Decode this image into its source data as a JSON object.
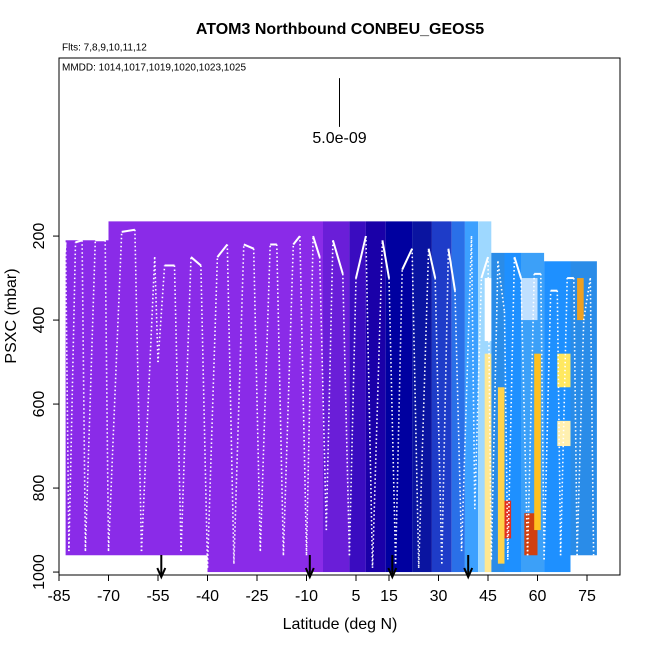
{
  "chart_data": {
    "type": "curtain",
    "title": "ATOM3 Northbound CONBEU_GEOS5",
    "subtitle": "Flts: 7,8,9,10,11,12",
    "annotation": "MMDD: 1014,1017,1019,1020,1023,1025",
    "scale_label": "5.0e-09",
    "scale_bar": {
      "x": 0,
      "y": [
        -176,
        -60
      ]
    },
    "x_label": "Latitude (deg N)",
    "y_label": "PSXC (mbar)",
    "xlim": [
      -85,
      85
    ],
    "ylim": [
      1007,
      -224
    ],
    "xticks": [
      -85,
      -70,
      -55,
      -40,
      -25,
      -10,
      5,
      15,
      30,
      45,
      60,
      75
    ],
    "yticks": [
      200,
      400,
      600,
      800,
      1000
    ],
    "cells": [
      {
        "x": [
          -83,
          -70
        ],
        "y": [
          210,
          960
        ],
        "color": "#8a2be8"
      },
      {
        "x": [
          -70,
          -40
        ],
        "y": [
          165,
          960
        ],
        "color": "#8a2be8"
      },
      {
        "x": [
          -40,
          -5
        ],
        "y": [
          165,
          1000
        ],
        "color": "#8a2be8"
      },
      {
        "x": [
          -5,
          3
        ],
        "y": [
          165,
          1000
        ],
        "color": "#6a1ed8"
      },
      {
        "x": [
          3,
          8
        ],
        "y": [
          165,
          1000
        ],
        "color": "#3a0cc0"
      },
      {
        "x": [
          8,
          14
        ],
        "y": [
          165,
          1000
        ],
        "color": "#1a00a8"
      },
      {
        "x": [
          14,
          22
        ],
        "y": [
          165,
          1000
        ],
        "color": "#0000a0"
      },
      {
        "x": [
          22,
          28
        ],
        "y": [
          165,
          1000
        ],
        "color": "#0a14a0"
      },
      {
        "x": [
          28,
          34
        ],
        "y": [
          165,
          1000
        ],
        "color": "#1e3cc8"
      },
      {
        "x": [
          34,
          38
        ],
        "y": [
          165,
          1000
        ],
        "color": "#2a70e8"
      },
      {
        "x": [
          38,
          42
        ],
        "y": [
          165,
          1000
        ],
        "color": "#3ca0ff"
      },
      {
        "x": [
          42,
          46
        ],
        "y": [
          165,
          1000
        ],
        "color": "#9ed8ff"
      },
      {
        "x": [
          46,
          50
        ],
        "y": [
          240,
          1000
        ],
        "color": "#2a8ce8"
      },
      {
        "x": [
          50,
          55
        ],
        "y": [
          240,
          1000
        ],
        "color": "#1e90ff"
      },
      {
        "x": [
          55,
          62
        ],
        "y": [
          240,
          1000
        ],
        "color": "#3ca0f8"
      },
      {
        "x": [
          62,
          70
        ],
        "y": [
          260,
          1000
        ],
        "color": "#1e90ff"
      },
      {
        "x": [
          70,
          78
        ],
        "y": [
          260,
          960
        ],
        "color": "#2a8ce8"
      },
      {
        "x": [
          44,
          46
        ],
        "y": [
          480,
          1000
        ],
        "color": "#ffe890"
      },
      {
        "x": [
          48,
          50
        ],
        "y": [
          560,
          980
        ],
        "color": "#ffd24a"
      },
      {
        "x": [
          50,
          52
        ],
        "y": [
          830,
          920
        ],
        "color": "#e03020"
      },
      {
        "x": [
          56,
          60
        ],
        "y": [
          860,
          960
        ],
        "color": "#d04010"
      },
      {
        "x": [
          59,
          61
        ],
        "y": [
          480,
          900
        ],
        "color": "#ffc020"
      },
      {
        "x": [
          66,
          70
        ],
        "y": [
          480,
          560
        ],
        "color": "#ffe860"
      },
      {
        "x": [
          66,
          70
        ],
        "y": [
          640,
          700
        ],
        "color": "#fff0b0"
      },
      {
        "x": [
          72,
          74
        ],
        "y": [
          300,
          400
        ],
        "color": "#f0a020"
      },
      {
        "x": [
          55,
          60
        ],
        "y": [
          300,
          400
        ],
        "color": "#c0e0ff"
      },
      {
        "x": [
          44,
          46
        ],
        "y": [
          300,
          450
        ],
        "color": "#ffffff"
      }
    ],
    "track": {
      "color": "#ffffff",
      "x": [
        -84,
        -83,
        -82,
        -80,
        -78,
        -77,
        -74,
        -71,
        -70,
        -66,
        -62,
        -60,
        -56,
        -55,
        -53,
        -50,
        -48,
        -45,
        -42,
        -40,
        -37,
        -34,
        -32,
        -29,
        -26,
        -24,
        -21,
        -19,
        -17,
        -14,
        -12,
        -10,
        -8,
        -6,
        -4,
        -2,
        1,
        3,
        5,
        8,
        10,
        13,
        15,
        17,
        19,
        22,
        24,
        27,
        29,
        31,
        33,
        35,
        37,
        40,
        41,
        43,
        45,
        46,
        48,
        50,
        51,
        53,
        55,
        57,
        59,
        61,
        62,
        64,
        66,
        67,
        69,
        71,
        72,
        74,
        76,
        77
      ],
      "y": [
        300,
        215,
        950,
        215,
        210,
        950,
        210,
        210,
        950,
        190,
        185,
        950,
        250,
        500,
        270,
        270,
        950,
        250,
        270,
        990,
        250,
        220,
        980,
        220,
        230,
        950,
        220,
        220,
        960,
        220,
        200,
        960,
        200,
        250,
        900,
        210,
        290,
        960,
        300,
        200,
        990,
        210,
        300,
        980,
        280,
        230,
        990,
        230,
        300,
        980,
        230,
        330,
        950,
        200,
        850,
        300,
        250,
        970,
        260,
        380,
        970,
        250,
        300,
        960,
        290,
        290,
        970,
        330,
        330,
        960,
        300,
        300,
        960,
        400,
        300,
        960
      ]
    },
    "arrows": [
      -54,
      -9,
      16,
      39
    ]
  }
}
